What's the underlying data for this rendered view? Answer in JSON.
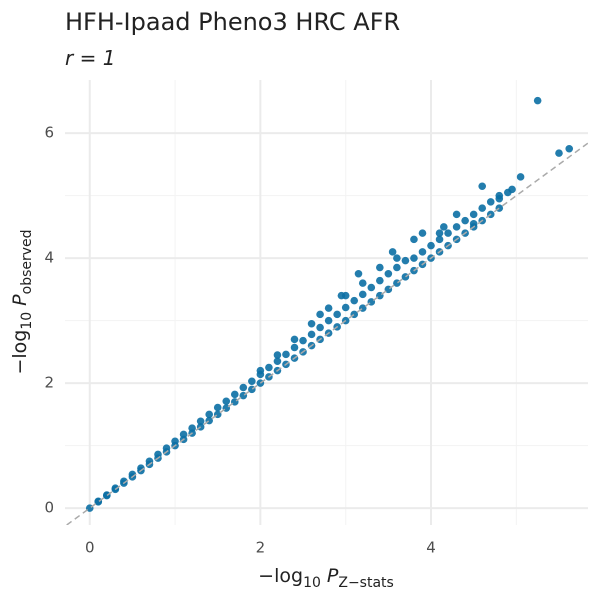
{
  "chart_data": {
    "type": "scatter",
    "title": "HFH-Ipaad Pheno3 HRC AFR",
    "subtitle": "r = 1",
    "x_label": [
      "−log",
      "10",
      "P",
      "Z−stats"
    ],
    "y_label": [
      "−log",
      "10",
      "P",
      "observed"
    ],
    "color": "#0b6fa4",
    "diagonal": true,
    "grid": true,
    "xlim": [
      -0.29,
      5.84
    ],
    "ylim": [
      -0.27,
      6.85
    ],
    "xticks": [
      0,
      2,
      4
    ],
    "yticks": [
      0,
      2,
      4,
      6
    ],
    "minor_xticks": [
      1,
      3,
      5
    ],
    "minor_yticks": [
      1,
      3,
      5
    ],
    "x": [
      0,
      0.1,
      0.2,
      0.3,
      0.4,
      0.5,
      0.6,
      0.7,
      0.8,
      0.9,
      1.0,
      1.1,
      1.2,
      1.3,
      1.4,
      1.5,
      1.6,
      1.7,
      1.8,
      1.9,
      2.0,
      2.1,
      2.2,
      2.3,
      2.4,
      2.5,
      2.6,
      2.7,
      2.8,
      2.9,
      3.0,
      3.1,
      3.2,
      3.3,
      3.4,
      3.5,
      3.6,
      3.7,
      3.8,
      3.9,
      4.0,
      4.1,
      4.2,
      4.3,
      4.4,
      4.5,
      4.6,
      4.7,
      4.8,
      0.1,
      0.2,
      0.3,
      0.4,
      0.5,
      0.6,
      0.7,
      0.8,
      0.9,
      1.0,
      1.1,
      1.2,
      1.3,
      1.4,
      1.5,
      1.6,
      1.7,
      1.8,
      1.9,
      2.0,
      2.1,
      2.2,
      2.3,
      2.4,
      2.5,
      2.6,
      2.7,
      2.8,
      2.9,
      3.0,
      3.1,
      3.2,
      3.3,
      3.4,
      3.5,
      3.6,
      3.7,
      3.8,
      3.9,
      4.0,
      4.1,
      4.2,
      4.3,
      4.4,
      4.5,
      4.6,
      4.7,
      4.8,
      2.0,
      2.2,
      2.4,
      2.6,
      2.8,
      3.0,
      3.2,
      3.4,
      5.25,
      5.5,
      5.62,
      5.05,
      4.6,
      4.8,
      4.9,
      4.95,
      4.3,
      4.5,
      4.1,
      4.15,
      3.9,
      3.8,
      3.55,
      3.6,
      3.15,
      2.95,
      2.7
    ],
    "values": [
      0,
      0.1,
      0.2,
      0.3,
      0.4,
      0.5,
      0.6,
      0.7,
      0.8,
      0.9,
      1.0,
      1.1,
      1.2,
      1.3,
      1.4,
      1.5,
      1.6,
      1.7,
      1.8,
      1.9,
      2.0,
      2.1,
      2.2,
      2.3,
      2.4,
      2.5,
      2.6,
      2.7,
      2.8,
      2.9,
      3.0,
      3.1,
      3.2,
      3.3,
      3.4,
      3.5,
      3.6,
      3.7,
      3.8,
      3.9,
      4.0,
      4.1,
      4.2,
      4.3,
      4.4,
      4.5,
      4.6,
      4.7,
      4.8,
      0.11,
      0.21,
      0.32,
      0.43,
      0.54,
      0.64,
      0.75,
      0.86,
      0.96,
      1.07,
      1.18,
      1.28,
      1.39,
      1.5,
      1.61,
      1.71,
      1.82,
      1.93,
      2.03,
      2.14,
      2.25,
      2.35,
      2.46,
      2.57,
      2.68,
      2.78,
      2.89,
      3.0,
      3.1,
      3.21,
      3.32,
      3.42,
      3.53,
      3.64,
      3.75,
      3.85,
      3.96,
      4.0,
      4.1,
      4.2,
      4.3,
      4.4,
      4.5,
      4.6,
      4.7,
      4.8,
      4.9,
      5.0,
      2.2,
      2.45,
      2.7,
      2.95,
      3.2,
      3.4,
      3.6,
      3.85,
      6.52,
      5.68,
      5.75,
      5.3,
      5.15,
      4.95,
      5.05,
      5.1,
      4.7,
      4.55,
      4.4,
      4.5,
      4.4,
      4.3,
      4.1,
      4.0,
      3.75,
      3.4,
      3.1
    ]
  }
}
